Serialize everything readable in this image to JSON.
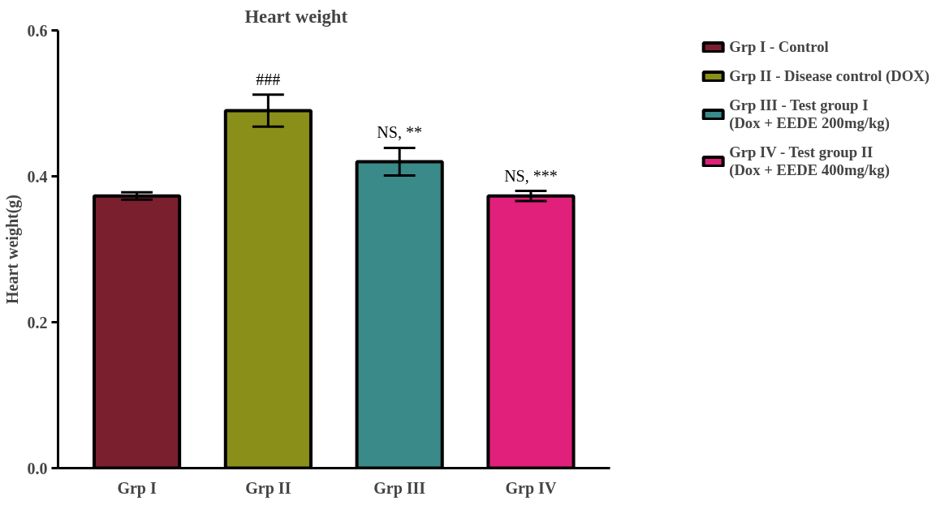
{
  "chart_data": {
    "type": "bar",
    "title": "Heart weight",
    "ylabel": "Heart weight(g)",
    "categories": [
      "Grp I",
      "Grp II",
      "Grp III",
      "Grp IV"
    ],
    "series": [
      {
        "name": "Grp I - Control",
        "color": "#7a1f2e",
        "values": [
          0.373,
          null,
          null,
          null
        ],
        "errors": [
          0.005,
          null,
          null,
          null
        ]
      },
      {
        "name": "Grp II - Disease control (DOX)",
        "color": "#8a8f1a",
        "values": [
          null,
          0.49,
          null,
          null
        ],
        "errors": [
          null,
          0.022,
          null,
          null
        ]
      },
      {
        "name": "Grp III - Test group I\n(Dox + EEDE 200mg/kg)",
        "color": "#3a8a8a",
        "values": [
          null,
          null,
          0.42,
          null
        ],
        "errors": [
          null,
          null,
          0.019,
          null
        ]
      },
      {
        "name": "Grp IV - Test group II\n(Dox + EEDE 400mg/kg)",
        "color": "#e0207a",
        "values": [
          null,
          null,
          null,
          0.373
        ],
        "errors": [
          null,
          null,
          null,
          0.007
        ]
      }
    ],
    "ylim": [
      0,
      0.6
    ],
    "yticks": [
      {
        "value": 0,
        "label": "0.0"
      },
      {
        "value": 0.2,
        "label": "0.2"
      },
      {
        "value": 0.4,
        "label": "0.4"
      },
      {
        "value": 0.6,
        "label": "0.6"
      }
    ],
    "annotations": [
      "###",
      "NS, **",
      "NS, ***"
    ],
    "grid": false,
    "legend": "right"
  }
}
